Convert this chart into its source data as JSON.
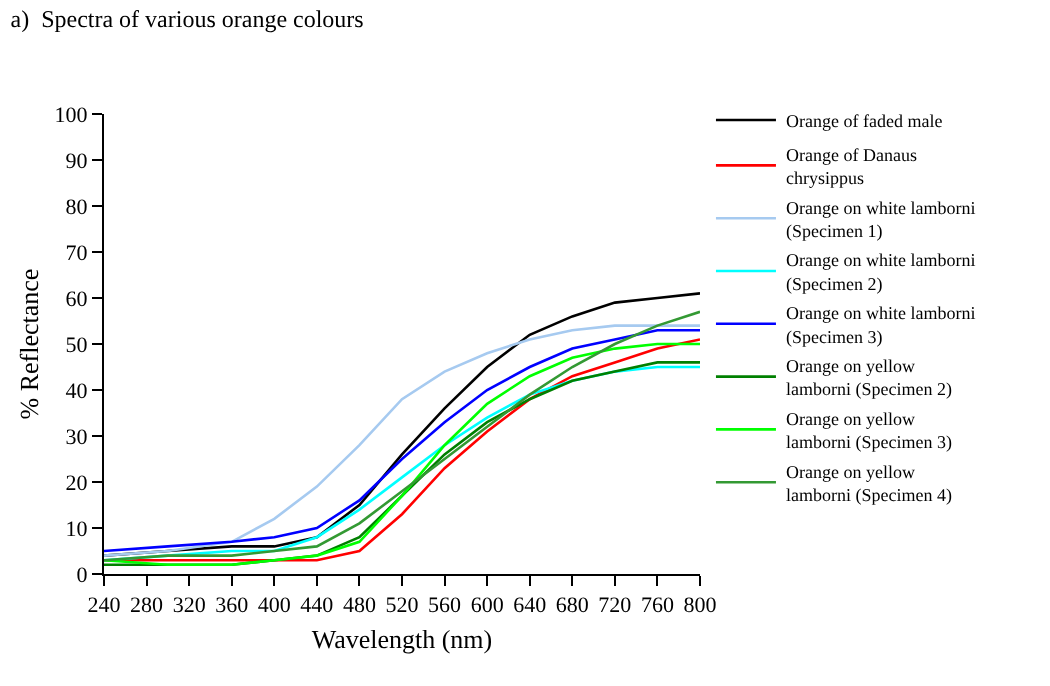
{
  "chart_data": {
    "type": "line",
    "title": "a)  Spectra of various orange colours",
    "xlabel": "Wavelength (nm)",
    "ylabel": "% Reflectance",
    "x": [
      240,
      300,
      360,
      400,
      440,
      480,
      520,
      560,
      600,
      640,
      680,
      720,
      760,
      800
    ],
    "xlim": [
      240,
      800
    ],
    "xticks": [
      240,
      280,
      320,
      360,
      400,
      440,
      480,
      520,
      560,
      600,
      640,
      680,
      720,
      760,
      800
    ],
    "ylim": [
      0,
      100
    ],
    "yticks": [
      0,
      10,
      20,
      30,
      40,
      50,
      60,
      70,
      80,
      90,
      100
    ],
    "legend": "right",
    "marker": "none",
    "series": [
      {
        "name": "Orange of faded male",
        "color": "#000000",
        "values": [
          4,
          5,
          6,
          6,
          8,
          15,
          26,
          36,
          45,
          52,
          56,
          59,
          60,
          61
        ]
      },
      {
        "name": "Orange of Danaus chrysippus",
        "color": "#ff0000",
        "values": [
          3,
          3,
          3,
          3,
          3,
          5,
          13,
          23,
          31,
          38,
          43,
          46,
          49,
          51
        ]
      },
      {
        "name": "Orange on white lamborni (Specimen 1)",
        "color": "#a6caf0",
        "values": [
          4,
          5,
          7,
          12,
          19,
          28,
          38,
          44,
          48,
          51,
          53,
          54,
          54,
          54
        ]
      },
      {
        "name": "Orange on white lamborni (Specimen 2)",
        "color": "#00ffff",
        "values": [
          3,
          4,
          5,
          5,
          8,
          14,
          21,
          28,
          34,
          39,
          42,
          44,
          45,
          45
        ]
      },
      {
        "name": "Orange on white lamborni (Specimen 3)",
        "color": "#0000ff",
        "values": [
          5,
          6,
          7,
          8,
          10,
          16,
          25,
          33,
          40,
          45,
          49,
          51,
          53,
          53
        ]
      },
      {
        "name": "Orange on yellow lamborni (Specimen 2)",
        "color": "#008000",
        "values": [
          2,
          2,
          2,
          3,
          4,
          8,
          17,
          26,
          33,
          38,
          42,
          44,
          46,
          46
        ]
      },
      {
        "name": "Orange on yellow lamborni (Specimen 3)",
        "color": "#00ff00",
        "values": [
          3,
          2,
          2,
          3,
          4,
          7,
          17,
          28,
          37,
          43,
          47,
          49,
          50,
          50
        ]
      },
      {
        "name": "Orange on yellow lamborni (Specimen 4)",
        "color": "#339933",
        "values": [
          3,
          4,
          4,
          5,
          6,
          11,
          18,
          25,
          32,
          39,
          45,
          50,
          54,
          57
        ]
      }
    ]
  }
}
